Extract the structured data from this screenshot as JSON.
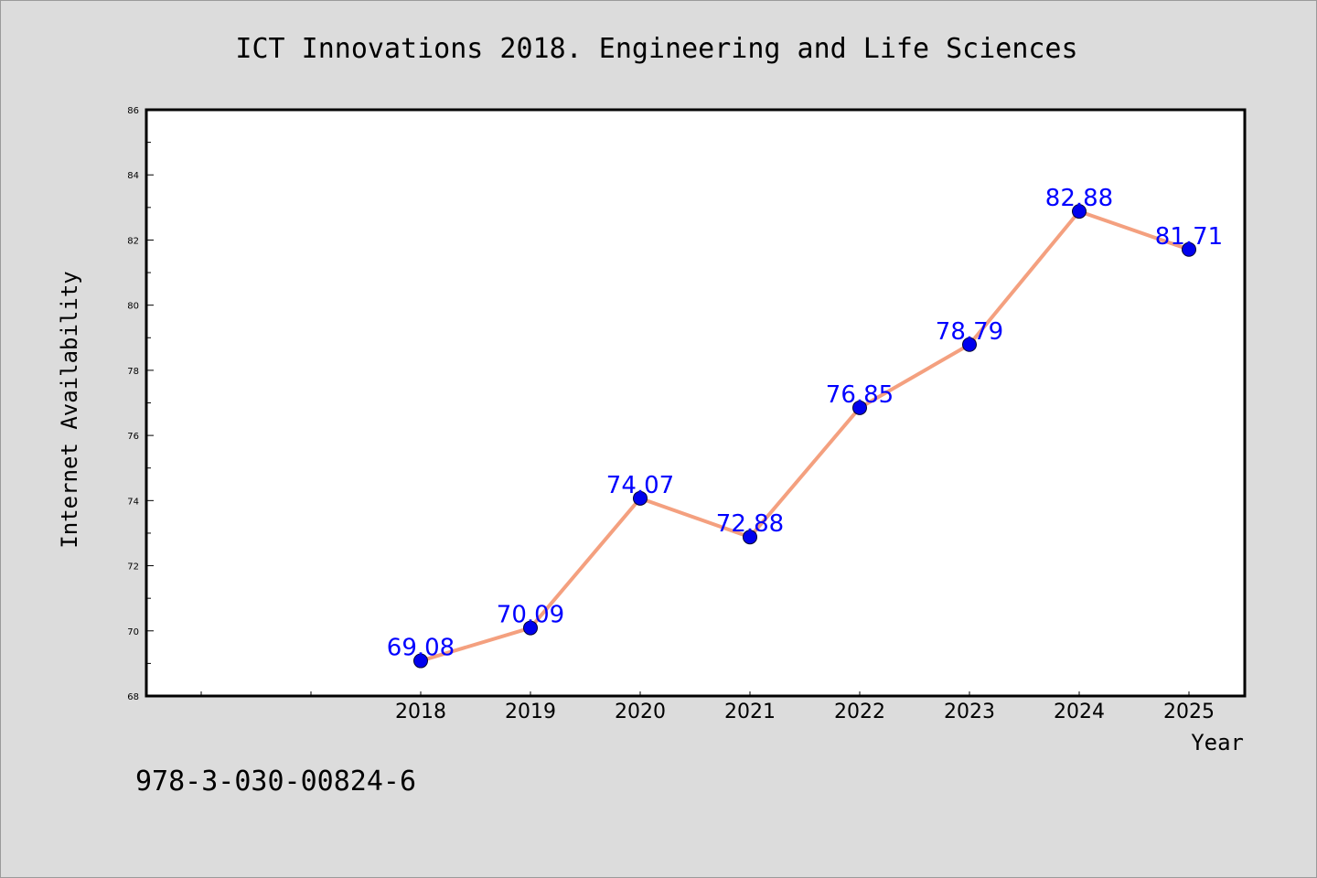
{
  "chart_data": {
    "type": "line",
    "title": "ICT Innovations 2018. Engineering and Life Sciences",
    "xlabel": "Year",
    "ylabel": "Internet Availability",
    "categories": [
      "2018",
      "2019",
      "2020",
      "2021",
      "2022",
      "2023",
      "2024",
      "2025"
    ],
    "values": [
      69.08,
      70.09,
      74.07,
      72.88,
      76.85,
      78.79,
      82.88,
      81.71
    ],
    "data_labels": [
      "69.08",
      "70.09",
      "74.07",
      "72.88",
      "76.85",
      "78.79",
      "82.88",
      "81.71"
    ],
    "ylim": [
      68,
      86
    ],
    "yticks": [
      "68",
      "70",
      "72",
      "74",
      "76",
      "78",
      "80",
      "82",
      "84",
      "86"
    ],
    "grid": false,
    "line_color": "#f4a07f",
    "marker_color": "#0000ee",
    "label_color": "#0000ff"
  },
  "footer": {
    "isbn": "978-3-030-00824-6"
  }
}
